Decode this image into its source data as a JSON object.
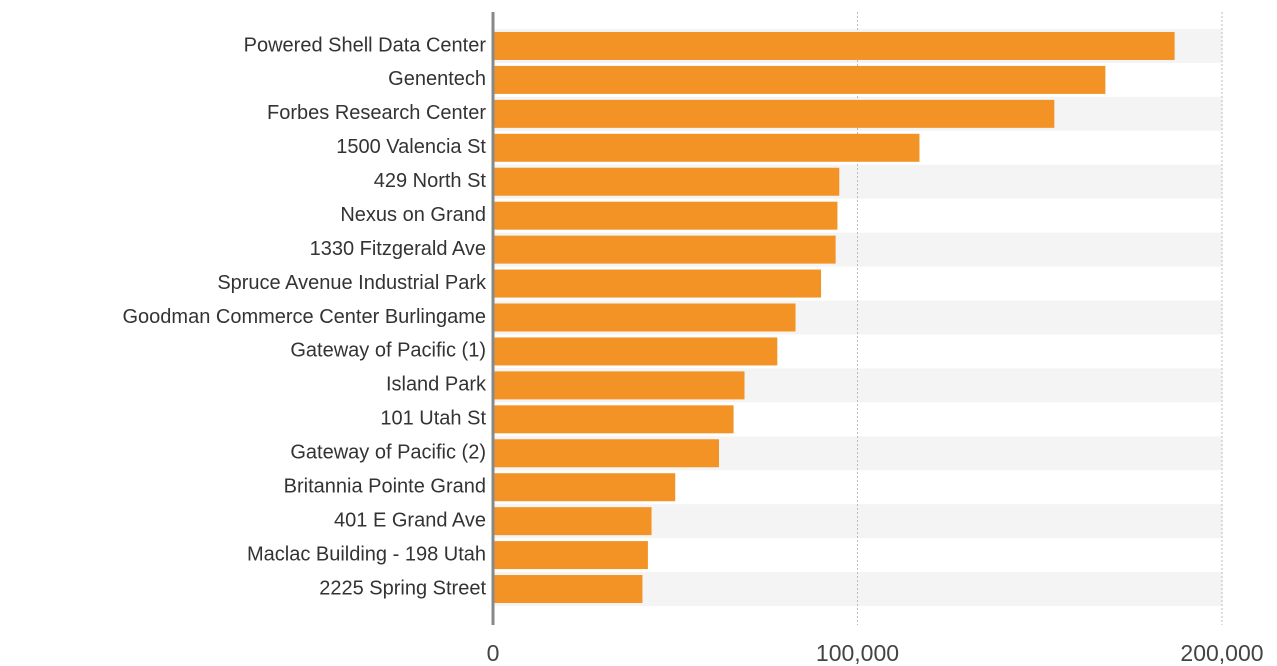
{
  "chart_data": {
    "type": "hbar",
    "categories": [
      "Powered Shell Data Center",
      "Genentech",
      "Forbes Research Center",
      "1500 Valencia St",
      "429 North St",
      "Nexus on Grand",
      "1330 Fitzgerald Ave",
      "Spruce Avenue Industrial Park",
      "Goodman Commerce Center Burlingame",
      "Gateway of Pacific (1)",
      "Island Park",
      "101 Utah St",
      "Gateway of Pacific (2)",
      "Britannia Pointe Grand",
      "401 E Grand Ave",
      "Maclac Building - 198 Utah",
      "2225 Spring Street"
    ],
    "values": [
      187000,
      168000,
      154000,
      117000,
      95000,
      94500,
      94000,
      90000,
      83000,
      78000,
      69000,
      66000,
      62000,
      50000,
      43500,
      42500,
      41000
    ],
    "color": "#f39325",
    "xlim": [
      0,
      200000
    ],
    "xticks": [
      0,
      {
        "value": 100000,
        "label": "100,000"
      },
      {
        "value": 200000,
        "label": "200,000"
      }
    ],
    "grid": true
  }
}
